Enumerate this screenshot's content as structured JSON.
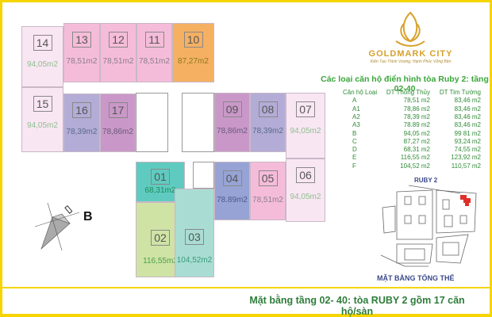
{
  "logo": {
    "name": "GOLDMARK CITY",
    "tagline": "Kiến Tạo Thịnh Vượng, Hạnh Phúc Vững Bền"
  },
  "title": "Các loại căn hộ điển hình tòa Ruby 2: tầng 02-40",
  "table": {
    "headers": [
      "Căn hộ Loại",
      "DT Thông Thủy",
      "DT Tim Tường"
    ],
    "rows": [
      [
        "A",
        "78,51 m2",
        "83,46 m2"
      ],
      [
        "A1",
        "78,86 m2",
        "83,46 m2"
      ],
      [
        "A2",
        "78,39 m2",
        "83,46 m2"
      ],
      [
        "A3",
        "78.89 m2",
        "83,46 m2"
      ],
      [
        "B",
        "94,05 m2",
        "99 81 m2"
      ],
      [
        "C",
        "87,27 m2",
        "93,24 m2"
      ],
      [
        "D",
        "68,31 m2",
        "74,55 m2"
      ],
      [
        "E",
        "116,55 m2",
        "123,92 m2"
      ],
      [
        "F",
        "104,52 m2",
        "110,57 m2"
      ]
    ]
  },
  "units": [
    {
      "num": "14",
      "area": "94,05m2",
      "color": "#f9e6f3",
      "text": "#8fbf8f"
    },
    {
      "num": "13",
      "area": "78,51m2",
      "color": "#f5bcd9",
      "text": "#8a7f8a"
    },
    {
      "num": "12",
      "area": "78,51m2",
      "color": "#f5bcd9",
      "text": "#8a7f8a"
    },
    {
      "num": "11",
      "area": "78,51m2",
      "color": "#f5bcd9",
      "text": "#8a7f8a"
    },
    {
      "num": "10",
      "area": "87,27m2",
      "color": "#f5b062",
      "text": "#8a7a20"
    },
    {
      "num": "15",
      "area": "94,05m2",
      "color": "#f9e6f3",
      "text": "#8fbf8f"
    },
    {
      "num": "16",
      "area": "78,39m2",
      "color": "#b3acd6",
      "text": "#5a6a8a"
    },
    {
      "num": "17",
      "area": "78,86m2",
      "color": "#c998c8",
      "text": "#6a5a7a"
    },
    {
      "num": "09",
      "area": "78,86m2",
      "color": "#c998c8",
      "text": "#6a5a7a"
    },
    {
      "num": "08",
      "area": "78,39m2",
      "color": "#b3acd6",
      "text": "#5a6a8a"
    },
    {
      "num": "07",
      "area": "94,05m2",
      "color": "#f9e6f3",
      "text": "#8fbf8f"
    },
    {
      "num": "01",
      "area": "68,31m2",
      "color": "#5fcbc0",
      "text": "#1e8a5a"
    },
    {
      "num": "02",
      "area": "116,55m2",
      "color": "#cfe3a5",
      "text": "#4aa04a"
    },
    {
      "num": "03",
      "area": "104,52m2",
      "color": "#a9ddd3",
      "text": "#3a9a7a"
    },
    {
      "num": "04",
      "area": "78.89m2",
      "color": "#97a3d4",
      "text": "#4a5a8a"
    },
    {
      "num": "05",
      "area": "78,51m2",
      "color": "#f5bcd9",
      "text": "#8a7f8a"
    },
    {
      "num": "06",
      "area": "94,05m2",
      "color": "#f9e6f3",
      "text": "#8fbf8f"
    }
  ],
  "compass_label": "B",
  "site": {
    "tower_label": "RUBY 2",
    "label": "MẶT BẰNG TỔNG THỂ",
    "highlight": "#e0302a"
  },
  "caption": "Mặt bằng tầng 02- 40:  tòa RUBY 2 gồm 17 căn hộ/sàn",
  "colors": {
    "border": "#f5d400",
    "title": "#3aa53a"
  }
}
